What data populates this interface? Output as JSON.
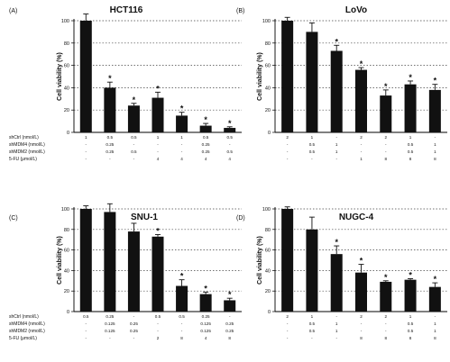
{
  "chart_data": [
    {
      "panel": "(A)",
      "type": "bar",
      "title": "HCT116",
      "ylabel": "Cell viability (%)",
      "ylim": [
        0,
        100
      ],
      "yticks": [
        0,
        20,
        40,
        60,
        80,
        100
      ],
      "grid": "dotted horizontal",
      "values": [
        100,
        40,
        24,
        31,
        15,
        6,
        4
      ],
      "errors": [
        6,
        5,
        2,
        5,
        3,
        2,
        1
      ],
      "significant": [
        false,
        true,
        true,
        true,
        true,
        true,
        true
      ],
      "conditions": [
        {
          "label": "shCtrl (nmol/L)",
          "cells": [
            "1",
            "0.5",
            "0.5",
            "1",
            "1",
            "0.5",
            "0.5"
          ]
        },
        {
          "label": "shMDM4 (nmol/L)",
          "cells": [
            "-",
            "0.25",
            "-",
            "-",
            "-",
            "0.25",
            "-"
          ]
        },
        {
          "label": "shMDM2 (nmol/L)",
          "cells": [
            "-",
            "0.25",
            "0.5",
            "-",
            "-",
            "0.25",
            "0.5"
          ]
        },
        {
          "label": "5-FU (μmol/L)",
          "cells": [
            "-",
            "-",
            "-",
            "4",
            "4",
            "4",
            "4"
          ]
        }
      ]
    },
    {
      "panel": "(B)",
      "type": "bar",
      "title": "LoVo",
      "ylabel": "Cell viability (%)",
      "ylim": [
        0,
        100
      ],
      "yticks": [
        0,
        20,
        40,
        60,
        80,
        100
      ],
      "grid": "dotted horizontal",
      "values": [
        100,
        90,
        73,
        56,
        33,
        43,
        38
      ],
      "errors": [
        3,
        8,
        5,
        2,
        5,
        3,
        5
      ],
      "significant": [
        false,
        false,
        true,
        true,
        true,
        true,
        true
      ],
      "conditions": [
        {
          "label": "",
          "cells": [
            "2",
            "1",
            "-",
            "2",
            "2",
            "1",
            "-"
          ]
        },
        {
          "label": "",
          "cells": [
            "-",
            "0.5",
            "1",
            "-",
            "-",
            "0.5",
            "1"
          ]
        },
        {
          "label": "",
          "cells": [
            "-",
            "0.5",
            "1",
            "-",
            "-",
            "0.5",
            "1"
          ]
        },
        {
          "label": "",
          "cells": [
            "-",
            "-",
            "-",
            "1",
            "8",
            "8",
            "8"
          ]
        }
      ]
    },
    {
      "panel": "(C)",
      "type": "bar",
      "title": "SNU-1",
      "ylabel": "Cell viability (%)",
      "ylim": [
        0,
        100
      ],
      "yticks": [
        0,
        20,
        40,
        60,
        80,
        100
      ],
      "grid": "dotted horizontal",
      "values": [
        100,
        97,
        78,
        73,
        25,
        17,
        11
      ],
      "errors": [
        3,
        8,
        8,
        2,
        6,
        2,
        2
      ],
      "significant": [
        false,
        false,
        false,
        true,
        true,
        true,
        true
      ],
      "conditions": [
        {
          "label": "shCtrl (nmol/L)",
          "cells": [
            "0.5",
            "0.25",
            "-",
            "0.5",
            "0.5",
            "0.25",
            "-"
          ]
        },
        {
          "label": "shMDM4 (nmol/L)",
          "cells": [
            "-",
            "0.125",
            "0.25",
            "-",
            "-",
            "0.125",
            "0.25"
          ]
        },
        {
          "label": "shMDM2 (nmol/L)",
          "cells": [
            "-",
            "0.125",
            "0.25",
            "-",
            "-",
            "0.125",
            "0.25"
          ]
        },
        {
          "label": "5-FU (μmol/L)",
          "cells": [
            "-",
            "-",
            "-",
            "2",
            "8",
            "4",
            "8"
          ]
        }
      ]
    },
    {
      "panel": "(D)",
      "type": "bar",
      "title": "NUGC-4",
      "ylabel": "Cell viability (%)",
      "ylim": [
        0,
        100
      ],
      "yticks": [
        0,
        20,
        40,
        60,
        80,
        100
      ],
      "grid": "dotted horizontal",
      "values": [
        100,
        80,
        56,
        38,
        29,
        31,
        24
      ],
      "errors": [
        2,
        12,
        8,
        8,
        1,
        1,
        4
      ],
      "significant": [
        false,
        false,
        true,
        true,
        true,
        true,
        true
      ],
      "conditions": [
        {
          "label": "",
          "cells": [
            "2",
            "1",
            "-",
            "2",
            "2",
            "1",
            "-"
          ]
        },
        {
          "label": "",
          "cells": [
            "-",
            "0.5",
            "1",
            "-",
            "-",
            "0.5",
            "1"
          ]
        },
        {
          "label": "",
          "cells": [
            "-",
            "0.5",
            "1",
            "-",
            "-",
            "0.5",
            "1"
          ]
        },
        {
          "label": "",
          "cells": [
            "-",
            "-",
            "-",
            "8",
            "8",
            "8",
            "8"
          ]
        }
      ]
    }
  ],
  "significance_marker": "*"
}
